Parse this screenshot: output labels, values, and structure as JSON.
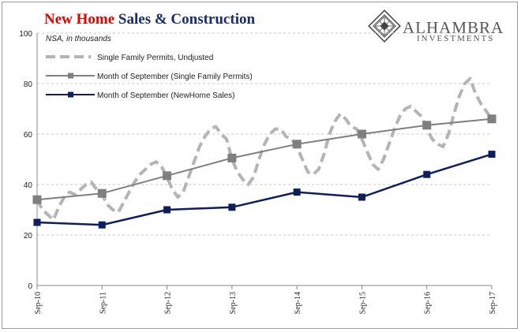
{
  "title": {
    "part1": "New Home",
    "part2": " Sales & Construction",
    "color1": "#e00000",
    "color2": "#1a2a6c"
  },
  "subtitle": "NSA, in thousands",
  "logo": {
    "name": "ALHAMBRA",
    "sub": "INVESTMENTS",
    "icon": "diamond-lattice-logo"
  },
  "chart_data": {
    "type": "line",
    "ylim": [
      0,
      100
    ],
    "yticks": [
      0,
      20,
      40,
      60,
      80,
      100
    ],
    "xticks": [
      "Sep-10",
      "Sep-11",
      "Sep-12",
      "Sep-13",
      "Sep-14",
      "Sep-15",
      "Sep-16",
      "Sep-17"
    ],
    "grid": true,
    "legend_position": "top-left",
    "series": [
      {
        "name": "Single Family Permits, Undjusted",
        "style": "dashed",
        "color": "#b4b4b4",
        "x": [
          0,
          0.083,
          0.167,
          0.25,
          0.333,
          0.417,
          0.5,
          0.583,
          0.667,
          0.75,
          0.833,
          0.917,
          1,
          1.083,
          1.167,
          1.25,
          1.333,
          1.417,
          1.5,
          1.583,
          1.667,
          1.75,
          1.833,
          1.917,
          2,
          2.083,
          2.167,
          2.25,
          2.333,
          2.417,
          2.5,
          2.583,
          2.667,
          2.75,
          2.833,
          2.917,
          3,
          3.083,
          3.167,
          3.25,
          3.333,
          3.417,
          3.5,
          3.583,
          3.667,
          3.75,
          3.833,
          3.917,
          4,
          4.083,
          4.167,
          4.25,
          4.333,
          4.417,
          4.5,
          4.583,
          4.667,
          4.75,
          4.833,
          4.917,
          5,
          5.083,
          5.167,
          5.25,
          5.333,
          5.417,
          5.5,
          5.583,
          5.667,
          5.75,
          5.833,
          5.917,
          6,
          6.083,
          6.167,
          6.25,
          6.333,
          6.417,
          6.5,
          6.583,
          6.667,
          6.75,
          6.833,
          6.917,
          7
        ],
        "values": [
          34,
          30,
          28,
          26,
          31,
          35,
          37,
          36,
          38,
          40,
          41,
          38,
          36,
          32,
          30,
          29,
          33,
          37,
          41,
          44,
          46,
          48,
          49,
          47,
          43,
          38,
          35,
          37,
          43,
          49,
          55,
          59,
          62,
          63,
          60,
          58,
          50,
          45,
          42,
          40,
          43,
          50,
          56,
          60,
          62,
          62,
          59,
          58,
          55,
          50,
          45,
          44,
          46,
          52,
          60,
          65,
          68,
          66,
          63,
          62,
          58,
          53,
          48,
          46,
          50,
          56,
          62,
          67,
          70,
          71,
          69,
          67,
          62,
          58,
          56,
          55,
          60,
          68,
          75,
          80,
          82,
          76,
          72,
          69,
          66
        ]
      },
      {
        "name": "Month of September (Single Family Permits)",
        "style": "solid-square",
        "color": "#7f7f7f",
        "x": [
          0,
          1,
          2,
          3,
          4,
          5,
          6,
          7
        ],
        "values": [
          34,
          36.5,
          43.5,
          50.5,
          56,
          60,
          63.5,
          66
        ]
      },
      {
        "name": "Month of September (NewHome Sales)",
        "style": "solid-square",
        "color": "#0d1f5c",
        "x": [
          0,
          1,
          2,
          3,
          4,
          5,
          6,
          7
        ],
        "values": [
          25,
          24,
          30,
          31,
          37,
          35,
          44,
          52
        ]
      }
    ]
  }
}
